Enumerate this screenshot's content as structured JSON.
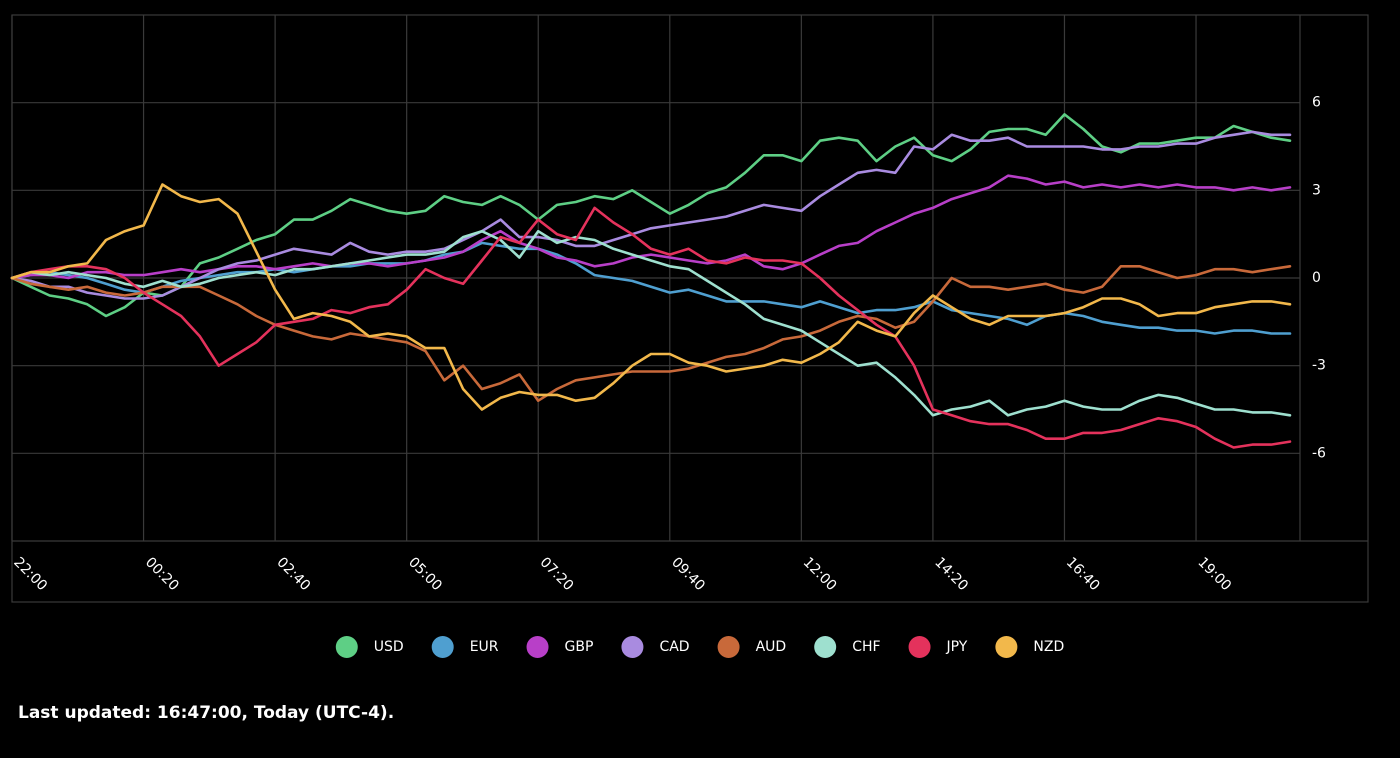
{
  "chart_data": {
    "type": "line",
    "x": [
      "22:00",
      "22:20",
      "22:40",
      "23:00",
      "23:20",
      "23:40",
      "00:00",
      "00:20",
      "00:40",
      "01:00",
      "01:20",
      "01:40",
      "02:00",
      "02:20",
      "02:40",
      "03:00",
      "03:20",
      "03:40",
      "04:00",
      "04:20",
      "04:40",
      "05:00",
      "05:20",
      "05:40",
      "06:00",
      "06:20",
      "06:40",
      "07:00",
      "07:20",
      "07:40",
      "08:00",
      "08:20",
      "08:40",
      "09:00",
      "09:20",
      "09:40",
      "10:00",
      "10:20",
      "10:40",
      "11:00",
      "11:20",
      "11:40",
      "12:00",
      "12:20",
      "12:40",
      "13:00",
      "13:20",
      "13:40",
      "14:00",
      "14:20",
      "14:40",
      "15:00",
      "15:20",
      "15:40",
      "16:00",
      "16:20",
      "16:40",
      "17:00",
      "17:20",
      "17:40",
      "18:00",
      "18:20",
      "18:40",
      "19:00",
      "19:20",
      "19:40",
      "20:00",
      "20:20",
      "20:40"
    ],
    "xticks": [
      "22:00",
      "00:20",
      "02:40",
      "05:00",
      "07:20",
      "09:40",
      "12:00",
      "14:20",
      "16:40",
      "19:00"
    ],
    "ylim": [
      -9,
      9
    ],
    "yticks": [
      -6,
      -3,
      0,
      3,
      6
    ],
    "grid": true,
    "series": [
      {
        "name": "USD",
        "color": "#5ecf85",
        "values": [
          0,
          -0.3,
          -0.6,
          -0.7,
          -0.9,
          -1.3,
          -1.0,
          -0.5,
          -0.6,
          -0.3,
          0.5,
          0.7,
          1.0,
          1.3,
          1.5,
          2.0,
          2.0,
          2.3,
          2.7,
          2.5,
          2.3,
          2.2,
          2.3,
          2.8,
          2.6,
          2.5,
          2.8,
          2.5,
          2.0,
          2.5,
          2.6,
          2.8,
          2.7,
          3.0,
          2.6,
          2.2,
          2.5,
          2.9,
          3.1,
          3.6,
          4.2,
          4.2,
          4.0,
          4.7,
          4.8,
          4.7,
          4.0,
          4.5,
          4.8,
          4.2,
          4.0,
          4.4,
          5.0,
          5.1,
          5.1,
          4.9,
          5.6,
          5.1,
          4.5,
          4.3,
          4.6,
          4.6,
          4.7,
          4.8,
          4.8,
          5.2,
          5.0,
          4.8,
          4.7
        ]
      },
      {
        "name": "EUR",
        "color": "#4f9fd0",
        "values": [
          0,
          0.1,
          0.2,
          0.1,
          0,
          -0.2,
          -0.4,
          -0.5,
          -0.3,
          -0.1,
          0,
          0.1,
          0.2,
          0.2,
          0.3,
          0.2,
          0.3,
          0.4,
          0.4,
          0.5,
          0.5,
          0.5,
          0.6,
          0.8,
          0.9,
          1.2,
          1.1,
          1.0,
          1.0,
          0.8,
          0.5,
          0.1,
          0,
          -0.1,
          -0.3,
          -0.5,
          -0.4,
          -0.6,
          -0.8,
          -0.8,
          -0.8,
          -0.9,
          -1.0,
          -0.8,
          -1.0,
          -1.2,
          -1.1,
          -1.1,
          -1.0,
          -0.8,
          -1.1,
          -1.2,
          -1.3,
          -1.4,
          -1.6,
          -1.3,
          -1.2,
          -1.3,
          -1.5,
          -1.6,
          -1.7,
          -1.7,
          -1.8,
          -1.8,
          -1.9,
          -1.8,
          -1.8,
          -1.9,
          -1.9
        ]
      },
      {
        "name": "GBP",
        "color": "#b83fc8",
        "values": [
          0,
          0.1,
          0.1,
          0,
          0.2,
          0.2,
          0.1,
          0.1,
          0.2,
          0.3,
          0.2,
          0.3,
          0.4,
          0.4,
          0.3,
          0.4,
          0.5,
          0.4,
          0.5,
          0.5,
          0.4,
          0.5,
          0.6,
          0.7,
          0.9,
          1.3,
          1.6,
          1.2,
          1.0,
          0.7,
          0.6,
          0.4,
          0.5,
          0.7,
          0.8,
          0.7,
          0.6,
          0.5,
          0.6,
          0.8,
          0.4,
          0.3,
          0.5,
          0.8,
          1.1,
          1.2,
          1.6,
          1.9,
          2.2,
          2.4,
          2.7,
          2.9,
          3.1,
          3.5,
          3.4,
          3.2,
          3.3,
          3.1,
          3.2,
          3.1,
          3.2,
          3.1,
          3.2,
          3.1,
          3.1,
          3.0,
          3.1,
          3.0,
          3.1
        ]
      },
      {
        "name": "CAD",
        "color": "#a98be0",
        "values": [
          0,
          -0.1,
          -0.3,
          -0.3,
          -0.5,
          -0.6,
          -0.7,
          -0.7,
          -0.6,
          -0.3,
          0,
          0.3,
          0.5,
          0.6,
          0.8,
          1.0,
          0.9,
          0.8,
          1.2,
          0.9,
          0.8,
          0.9,
          0.9,
          1.0,
          1.3,
          1.6,
          2.0,
          1.4,
          1.4,
          1.3,
          1.1,
          1.1,
          1.3,
          1.5,
          1.7,
          1.8,
          1.9,
          2.0,
          2.1,
          2.3,
          2.5,
          2.4,
          2.3,
          2.8,
          3.2,
          3.6,
          3.7,
          3.6,
          4.5,
          4.4,
          4.9,
          4.7,
          4.7,
          4.8,
          4.5,
          4.5,
          4.5,
          4.5,
          4.4,
          4.4,
          4.5,
          4.5,
          4.6,
          4.6,
          4.8,
          4.9,
          5.0,
          4.9,
          4.9
        ]
      },
      {
        "name": "AUD",
        "color": "#c8693a",
        "values": [
          0,
          -0.2,
          -0.3,
          -0.4,
          -0.3,
          -0.5,
          -0.6,
          -0.5,
          -0.3,
          -0.3,
          -0.3,
          -0.6,
          -0.9,
          -1.3,
          -1.6,
          -1.8,
          -2.0,
          -2.1,
          -1.9,
          -2.0,
          -2.1,
          -2.2,
          -2.5,
          -3.5,
          -3.0,
          -3.8,
          -3.6,
          -3.3,
          -4.2,
          -3.8,
          -3.5,
          -3.4,
          -3.3,
          -3.2,
          -3.2,
          -3.2,
          -3.1,
          -2.9,
          -2.7,
          -2.6,
          -2.4,
          -2.1,
          -2.0,
          -1.8,
          -1.5,
          -1.3,
          -1.4,
          -1.7,
          -1.5,
          -0.8,
          0,
          -0.3,
          -0.3,
          -0.4,
          -0.3,
          -0.2,
          -0.4,
          -0.5,
          -0.3,
          0.4,
          0.4,
          0.2,
          0,
          0.1,
          0.3,
          0.3,
          0.2,
          0.3,
          0.4
        ]
      },
      {
        "name": "CHF",
        "color": "#9ee0cf",
        "values": [
          0,
          0.2,
          0.1,
          0.2,
          0.1,
          0,
          -0.2,
          -0.3,
          -0.1,
          -0.3,
          -0.2,
          0,
          0.1,
          0.2,
          0.1,
          0.3,
          0.3,
          0.4,
          0.5,
          0.6,
          0.7,
          0.8,
          0.8,
          0.9,
          1.4,
          1.6,
          1.3,
          0.7,
          1.6,
          1.2,
          1.4,
          1.3,
          1.0,
          0.8,
          0.6,
          0.4,
          0.3,
          -0.1,
          -0.5,
          -0.9,
          -1.4,
          -1.6,
          -1.8,
          -2.2,
          -2.6,
          -3.0,
          -2.9,
          -3.4,
          -4.0,
          -4.7,
          -4.5,
          -4.4,
          -4.2,
          -4.7,
          -4.5,
          -4.4,
          -4.2,
          -4.4,
          -4.5,
          -4.5,
          -4.2,
          -4.0,
          -4.1,
          -4.3,
          -4.5,
          -4.5,
          -4.6,
          -4.6,
          -4.7
        ]
      },
      {
        "name": "JPY",
        "color": "#e4325c",
        "values": [
          0,
          0.2,
          0.3,
          0.4,
          0.4,
          0.3,
          0,
          -0.5,
          -0.9,
          -1.3,
          -2.0,
          -3.0,
          -2.6,
          -2.2,
          -1.6,
          -1.5,
          -1.4,
          -1.1,
          -1.2,
          -1.0,
          -0.9,
          -0.4,
          0.3,
          0.0,
          -0.2,
          0.6,
          1.4,
          1.2,
          2.0,
          1.5,
          1.3,
          2.4,
          1.9,
          1.5,
          1.0,
          0.8,
          1.0,
          0.6,
          0.5,
          0.7,
          0.6,
          0.6,
          0.5,
          0,
          -0.6,
          -1.1,
          -1.6,
          -2.0,
          -3.0,
          -4.5,
          -4.7,
          -4.9,
          -5.0,
          -5.0,
          -5.2,
          -5.5,
          -5.5,
          -5.3,
          -5.3,
          -5.2,
          -5.0,
          -4.8,
          -4.9,
          -5.1,
          -5.5,
          -5.8,
          -5.7,
          -5.7,
          -5.6
        ]
      },
      {
        "name": "NZD",
        "color": "#f2b84b",
        "values": [
          0,
          0.2,
          0.2,
          0.4,
          0.5,
          1.3,
          1.6,
          1.8,
          3.2,
          2.8,
          2.6,
          2.7,
          2.2,
          0.9,
          -0.4,
          -1.4,
          -1.2,
          -1.3,
          -1.5,
          -2.0,
          -1.9,
          -2.0,
          -2.4,
          -2.4,
          -3.8,
          -4.5,
          -4.1,
          -3.9,
          -4.0,
          -4.0,
          -4.2,
          -4.1,
          -3.6,
          -3.0,
          -2.6,
          -2.6,
          -2.9,
          -3.0,
          -3.2,
          -3.1,
          -3.0,
          -2.8,
          -2.9,
          -2.6,
          -2.2,
          -1.5,
          -1.8,
          -2.0,
          -1.2,
          -0.6,
          -1.0,
          -1.4,
          -1.6,
          -1.3,
          -1.3,
          -1.3,
          -1.2,
          -1.0,
          -0.7,
          -0.7,
          -0.9,
          -1.3,
          -1.2,
          -1.2,
          -1.0,
          -0.9,
          -0.8,
          -0.8,
          -0.9
        ]
      }
    ]
  },
  "footer": "Last updated: 16:47:00, Today (UTC-4)."
}
